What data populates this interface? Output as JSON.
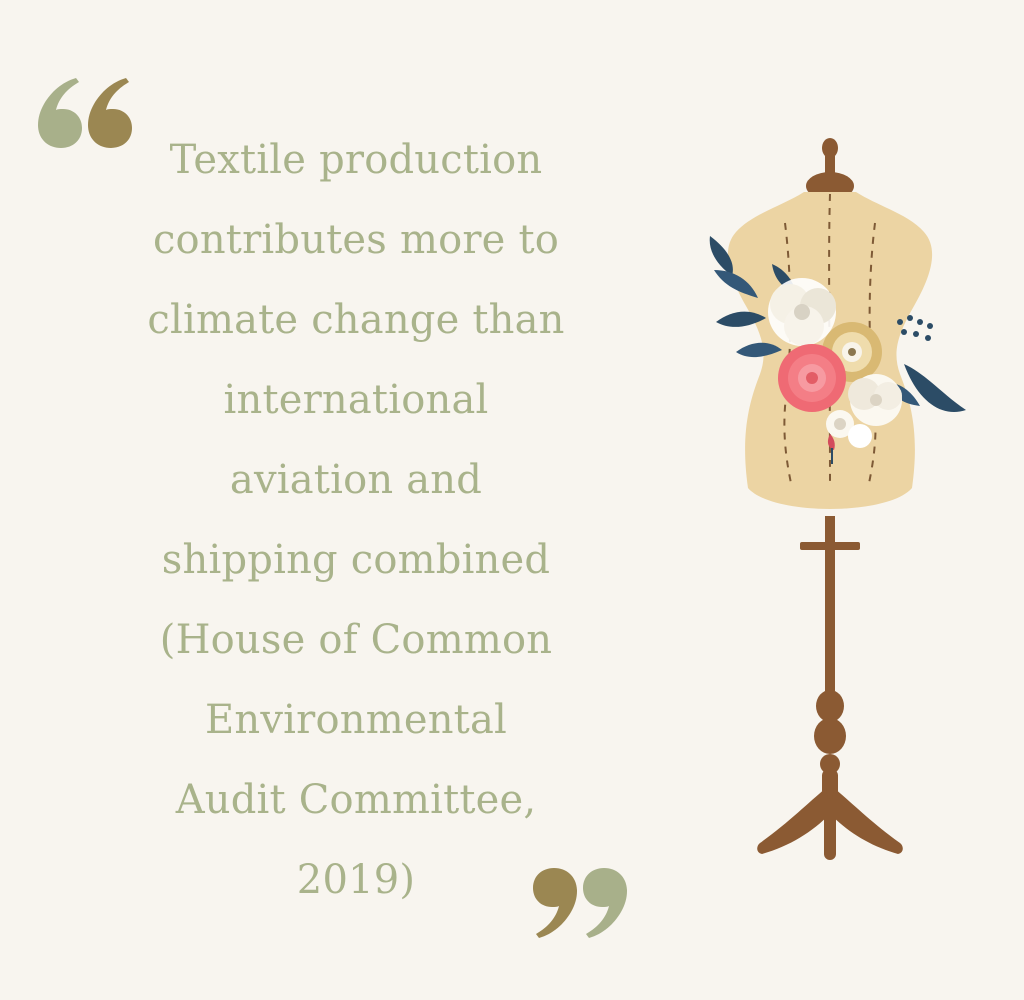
{
  "quote": {
    "lines": [
      "Textile production",
      "contributes more to",
      "climate change than",
      "international",
      "aviation and",
      "shipping combined",
      "(House of Common",
      "Environmental",
      "Audit Committee,",
      "2019)"
    ]
  },
  "icons": {
    "open_quote": "open-quote-mark-icon",
    "close_quote": "close-quote-mark-icon",
    "illustration": "dress-form-with-flowers"
  },
  "colors": {
    "background": "#f8f5ef",
    "text": "#a9b38b",
    "quote_dark": "#9b8752",
    "quote_light": "#a8b08a",
    "mannequin_body": "#ecd4a3",
    "mannequin_wood": "#8b5a33"
  }
}
